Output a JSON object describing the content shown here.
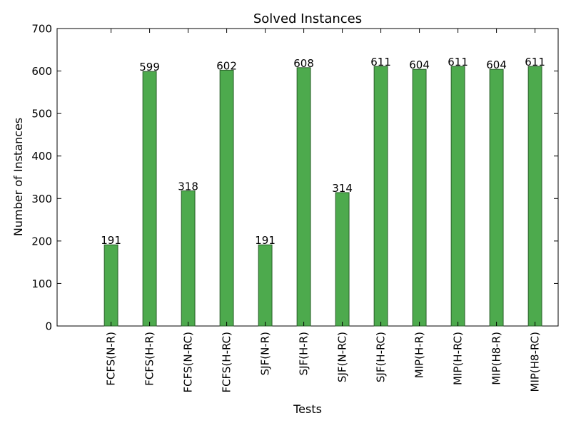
{
  "chart_data": {
    "type": "bar",
    "title": "Solved Instances",
    "xlabel": "Tests",
    "ylabel": "Number of Instances",
    "ylim": [
      0,
      700
    ],
    "yticks": [
      0,
      100,
      200,
      300,
      400,
      500,
      600,
      700
    ],
    "grid": false,
    "legend": "none",
    "bar_color": "#4daa4d",
    "bar_edge_color": "#2a5e2a",
    "categories": [
      "FCFS(N-R)",
      "FCFS(H-R)",
      "FCFS(N-RC)",
      "FCFS(H-RC)",
      "SJF(N-R)",
      "SJF(H-R)",
      "SJF(N-RC)",
      "SJF(H-RC)",
      "MIP(H-R)",
      "MIP(H-RC)",
      "MIP(H8-R)",
      "MIP(H8-RC)"
    ],
    "values": [
      191,
      599,
      318,
      602,
      191,
      608,
      314,
      611,
      604,
      611,
      604,
      611
    ]
  }
}
